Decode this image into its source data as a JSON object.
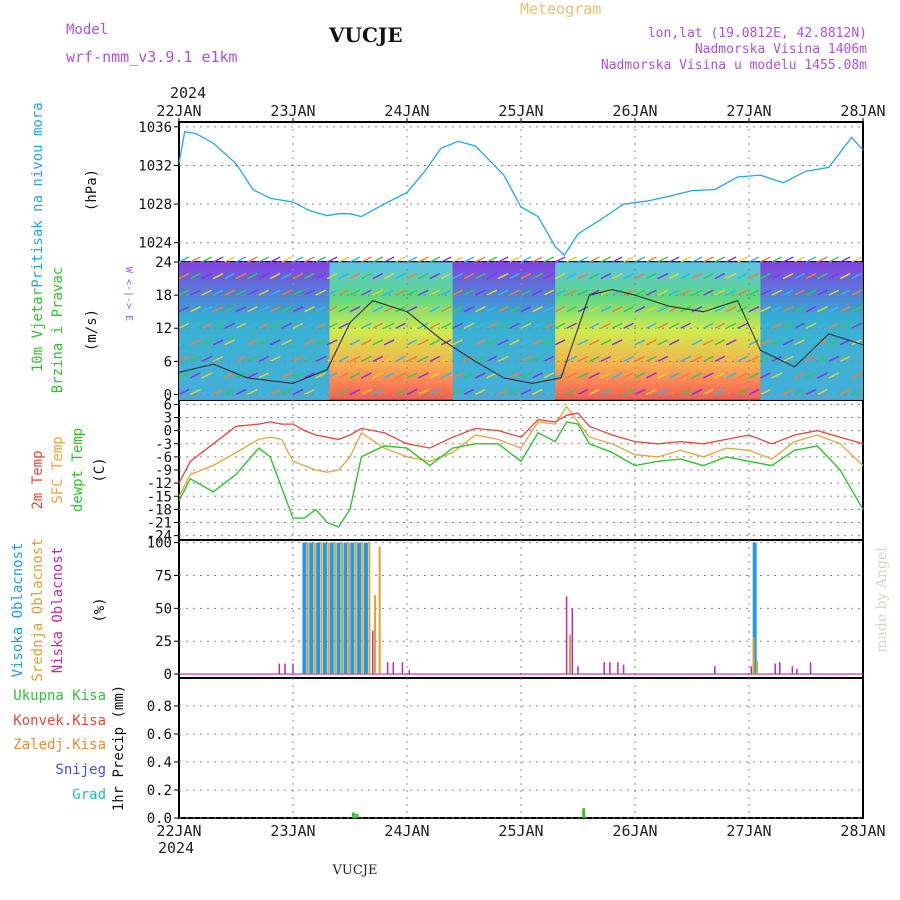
{
  "header": {
    "model_label": "Model",
    "model_name": "wrf-nmm_v3.9.1 e1km",
    "station": "VUCJE",
    "product": "Meteogram",
    "coords": "lon,lat (19.0812E, 42.8812N)",
    "altitude": "Nadmorska Visina 1406m",
    "model_altitude": "Nadmorska Visina u modelu 1455.08m",
    "credit": "made by Angel",
    "footer_station": "VUCJE"
  },
  "time_axis": {
    "year": "2024",
    "ticks": [
      "22JAN",
      "23JAN",
      "24JAN",
      "25JAN",
      "26JAN",
      "27JAN",
      "28JAN"
    ]
  },
  "panels": {
    "pressure": {
      "label": "Pritisak na nivou mora",
      "unit": "(hPa)"
    },
    "wind": {
      "label_1": "10m Vjetar",
      "label_2": "Brzina i Pravac",
      "unit": "(m/s)",
      "compass": "W <-|-> E"
    },
    "temp": {
      "label_1": "2m Temp",
      "label_2": "SFC Temp",
      "label_3": "dewpt Temp",
      "unit": "(C)"
    },
    "cloud": {
      "label_1": "Visoka Oblacnost",
      "label_2": "Srednja Oblacnost",
      "label_3": "Niska Oblacnost",
      "unit": "(%)"
    },
    "precip": {
      "unit": "1hr Precip (mm)",
      "legend": [
        "Ukupna Kisa",
        "Konvek.Kisa",
        "Zaledj.Kisa",
        "Snijeg",
        "Grad"
      ]
    }
  },
  "colors": {
    "pressure": "#1fa8e8",
    "temp2m": "#e8463a",
    "sfc": "#e8a33a",
    "dew": "#2ec42e",
    "cloud_high": "#1f9be8",
    "cloud_mid": "#e0a030",
    "cloud_low": "#c02aa8",
    "rain_total": "#2ec42e",
    "rain_conv": "#e8463a",
    "rain_freez": "#f08a30",
    "snow": "#4a4ae8",
    "hail": "#20c0b0",
    "label_purple": "#b050d8",
    "label_gold": "#e8c070"
  },
  "chart_data": [
    {
      "type": "line",
      "title": "Pritisak na nivou mora",
      "ylabel": "(hPa)",
      "ylim": [
        1022,
        1036.5
      ],
      "yticks": [
        1024,
        1028,
        1032,
        1036
      ],
      "x": [
        0,
        0.05,
        0.15,
        0.3,
        0.5,
        0.65,
        0.8,
        1.0,
        1.15,
        1.3,
        1.4,
        1.5,
        1.6,
        1.8,
        2.0,
        2.15,
        2.3,
        2.45,
        2.6,
        2.85,
        3.0,
        3.15,
        3.3,
        3.38,
        3.5,
        3.7,
        3.9,
        4.1,
        4.3,
        4.5,
        4.7,
        4.9,
        5.1,
        5.3,
        5.5,
        5.7,
        5.9,
        6.0
      ],
      "series": [
        {
          "values": [
            1032.2,
            1035.5,
            1035.3,
            1034.3,
            1032.2,
            1029.5,
            1028.6,
            1028.2,
            1027.3,
            1026.8,
            1027.0,
            1027.0,
            1026.7,
            1028.0,
            1029.2,
            1031.3,
            1033.8,
            1034.5,
            1034.0,
            1031.0,
            1027.7,
            1026.7,
            1023.6,
            1022.7,
            1024.9,
            1026.4,
            1028.0,
            1028.3,
            1028.8,
            1029.4,
            1029.5,
            1030.8,
            1031.0,
            1030.2,
            1031.4,
            1031.8,
            1034.9,
            1033.6
          ]
        }
      ]
    },
    {
      "type": "line",
      "title": "10m Vjetar Brzina i Pravac",
      "ylabel": "(m/s)",
      "ylim": [
        -1,
        24
      ],
      "yticks": [
        0,
        6,
        12,
        18,
        24
      ],
      "x": [
        0,
        0.3,
        0.6,
        1.0,
        1.3,
        1.5,
        1.7,
        2.0,
        2.3,
        2.6,
        2.85,
        3.1,
        3.35,
        3.6,
        3.8,
        4.0,
        4.3,
        4.6,
        4.9,
        5.1,
        5.4,
        5.7,
        6.0
      ],
      "series": [
        {
          "name": "wind speed",
          "values": [
            4,
            5.5,
            3,
            2,
            4.5,
            13,
            17,
            15,
            10,
            6,
            3,
            2,
            3,
            18,
            19,
            18,
            16,
            15,
            17,
            8,
            5,
            11,
            9
          ]
        }
      ]
    },
    {
      "type": "line",
      "title": "Temperature",
      "ylabel": "(C)",
      "ylim": [
        -25,
        7
      ],
      "yticks": [
        6,
        3,
        0,
        -3,
        -6,
        -9,
        -12,
        -15,
        -18,
        -21,
        -24
      ],
      "x": [
        0,
        0.1,
        0.3,
        0.5,
        0.7,
        0.8,
        0.9,
        1.0,
        1.1,
        1.2,
        1.3,
        1.4,
        1.5,
        1.6,
        1.8,
        2.0,
        2.2,
        2.4,
        2.6,
        2.8,
        3.0,
        3.15,
        3.3,
        3.4,
        3.5,
        3.6,
        3.8,
        4.0,
        4.2,
        4.4,
        4.6,
        4.8,
        5.0,
        5.2,
        5.4,
        5.6,
        5.8,
        6.0
      ],
      "series": [
        {
          "name": "2m Temp",
          "values": [
            -12,
            -7,
            -3,
            1,
            1.5,
            2,
            1.5,
            1.5,
            0,
            -1,
            -1.5,
            -2,
            -1,
            0.5,
            -0.5,
            -3,
            -4,
            -1.5,
            0.5,
            0,
            -1.5,
            2.5,
            2,
            3.5,
            4,
            1,
            -1,
            -2.5,
            -3,
            -2.5,
            -3,
            -2,
            -1,
            -3,
            -1,
            0,
            -1.5,
            -3
          ]
        },
        {
          "name": "SFC Temp",
          "values": [
            -15,
            -10,
            -8,
            -5,
            -2,
            -1.5,
            -2,
            -7,
            -8,
            -9,
            -9.5,
            -9,
            -6,
            -0.5,
            -4,
            -6,
            -7,
            -5,
            -1,
            -2,
            -4,
            2,
            1.5,
            5.5,
            2,
            -1.5,
            -3,
            -5.5,
            -6,
            -4.5,
            -6,
            -4,
            -4.5,
            -6.5,
            -2.5,
            -1,
            -3,
            -8
          ]
        },
        {
          "name": "dewpt Temp",
          "values": [
            -16,
            -11,
            -14,
            -10,
            -4,
            -6,
            -13,
            -20,
            -20,
            -18,
            -21,
            -22,
            -18,
            -6,
            -3.5,
            -4,
            -8,
            -4,
            -3,
            -3,
            -7,
            -0.5,
            -2.5,
            2,
            1.5,
            -3,
            -5,
            -8,
            -7,
            -6.5,
            -8,
            -6,
            -7,
            -8,
            -4.5,
            -3.5,
            -9,
            -18
          ]
        }
      ]
    },
    {
      "type": "bar",
      "title": "Oblacnost",
      "ylabel": "(%)",
      "ylim": [
        -3,
        102
      ],
      "yticks": [
        0,
        25,
        50,
        75,
        100
      ],
      "series": [
        {
          "name": "Visoka Oblacnost",
          "x": [
            1.1,
            1.16,
            1.22,
            1.28,
            1.34,
            1.4,
            1.46,
            1.52,
            1.58,
            1.64,
            5.05
          ],
          "values": [
            100,
            100,
            100,
            100,
            100,
            100,
            100,
            100,
            100,
            100,
            100
          ]
        },
        {
          "name": "Srednja Oblacnost",
          "x": [
            1.13,
            1.19,
            1.25,
            1.31,
            1.37,
            1.43,
            1.49,
            1.55,
            1.61,
            1.67,
            1.72,
            1.76,
            3.43,
            5.04,
            5.07
          ],
          "values": [
            100,
            100,
            100,
            100,
            100,
            100,
            100,
            100,
            100,
            100,
            60,
            97,
            30,
            28,
            10
          ]
        },
        {
          "name": "Niska Oblacnost",
          "x": [
            0.88,
            0.93,
            1.0,
            1.7,
            1.83,
            1.88,
            1.96,
            2.02,
            3.4,
            3.45,
            3.5,
            3.73,
            3.78,
            3.85,
            3.9,
            4.7,
            5.02,
            5.23,
            5.27,
            5.38,
            5.42,
            5.54
          ],
          "values": [
            8,
            8,
            8,
            33,
            9,
            9,
            9,
            3,
            59,
            50,
            6,
            9,
            9,
            9,
            7,
            6,
            6,
            8,
            9,
            6,
            4,
            9
          ]
        }
      ]
    },
    {
      "type": "bar",
      "title": "1hr Precip",
      "ylabel": "1hr Precip (mm)",
      "ylim": [
        0,
        1.0
      ],
      "yticks": [
        0,
        0.2,
        0.4,
        0.6,
        0.8
      ],
      "series": [
        {
          "name": "Ukupna Kisa",
          "x": [
            1.53,
            1.56,
            3.55
          ],
          "values": [
            0.04,
            0.03,
            0.07
          ]
        }
      ]
    }
  ]
}
